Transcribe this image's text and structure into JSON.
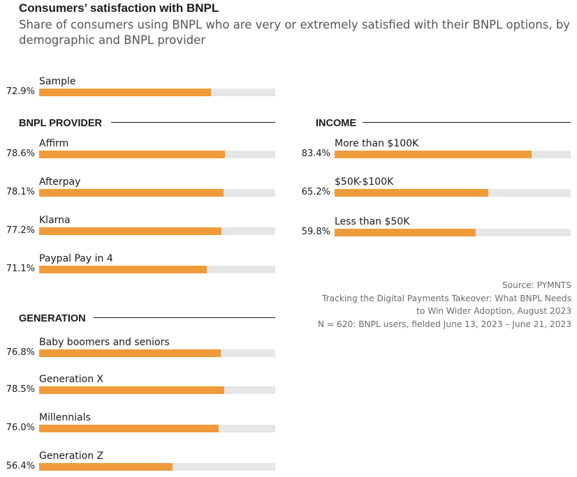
{
  "title": "Consumers’ satisfaction with BNPL",
  "subtitle": "Share of consumers using BNPL who are very or extremely satisfied with their BNPL options, by demographic and BNPL provider",
  "colors": {
    "bar": "#f09b39",
    "track": "#e6e6e6"
  },
  "chart_data": {
    "type": "bar",
    "orientation": "horizontal",
    "unit": "%",
    "xlim": [
      0,
      100
    ],
    "groups": [
      {
        "name": "",
        "items": [
          {
            "label": "Sample",
            "value": 72.9,
            "value_text": "72.9%"
          }
        ]
      },
      {
        "name": "BNPL PROVIDER",
        "items": [
          {
            "label": "Affirm",
            "value": 78.6,
            "value_text": "78.6%"
          },
          {
            "label": "Afterpay",
            "value": 78.1,
            "value_text": "78.1%"
          },
          {
            "label": "Klarna",
            "value": 77.2,
            "value_text": "77.2%"
          },
          {
            "label": "Paypal Pay in 4",
            "value": 71.1,
            "value_text": "71.1%"
          }
        ]
      },
      {
        "name": "GENERATION",
        "items": [
          {
            "label": "Baby boomers and seniors",
            "value": 76.8,
            "value_text": "76.8%"
          },
          {
            "label": "Generation X",
            "value": 78.5,
            "value_text": "78.5%"
          },
          {
            "label": "Millennials",
            "value": 76.0,
            "value_text": "76.0%"
          },
          {
            "label": "Generation Z",
            "value": 56.4,
            "value_text": "56.4%"
          }
        ]
      },
      {
        "name": "INCOME",
        "items": [
          {
            "label": "More than $100K",
            "value": 83.4,
            "value_text": "83.4%"
          },
          {
            "label": "$50K-$100K",
            "value": 65.2,
            "value_text": "65.2%"
          },
          {
            "label": "Less than $50K",
            "value": 59.8,
            "value_text": "59.8%"
          }
        ]
      }
    ]
  },
  "source": {
    "line1": "Source: PYMNTS",
    "line2": "Tracking the Digital Payments Takeover: What BNPL Needs",
    "line3": "to Win Wider Adoption, August 2023",
    "line4": "N = 620: BNPL users, fielded June 13, 2023 – June 21, 2023"
  }
}
